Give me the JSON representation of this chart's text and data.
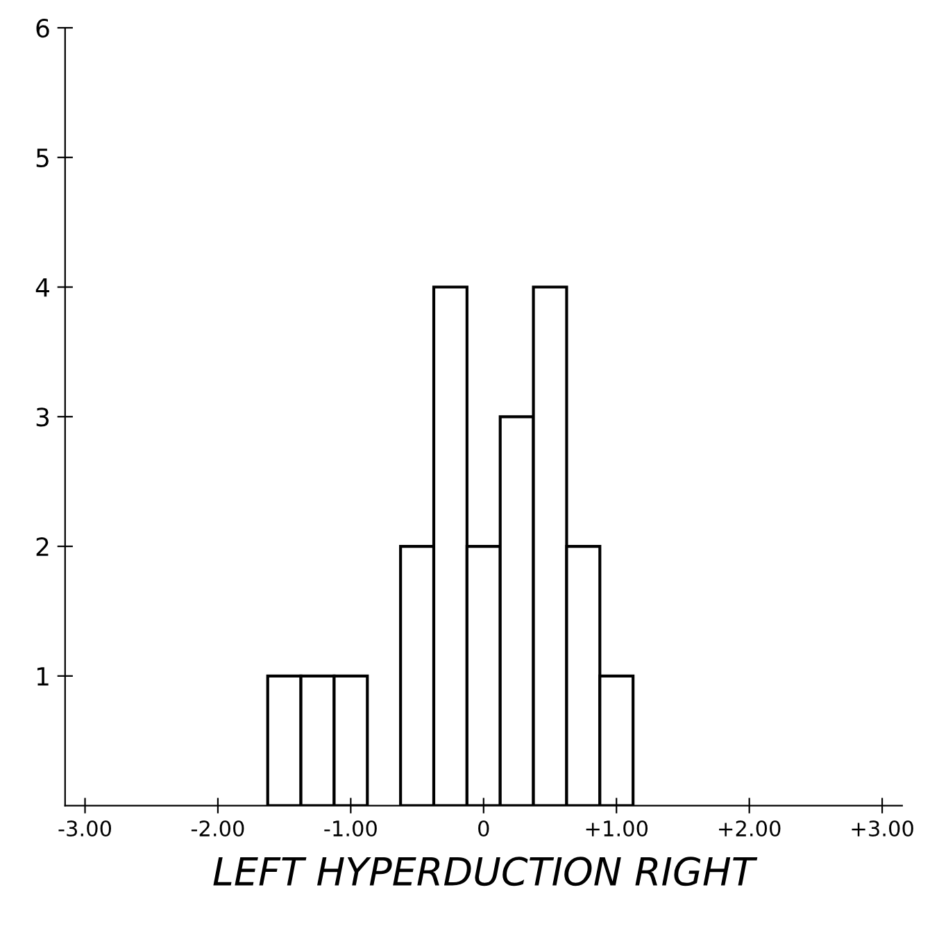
{
  "chart_data": {
    "type": "histogram",
    "xlabel": "LEFT HYPERDUCTION RIGHT",
    "bins": [
      -1.625,
      -1.375,
      -1.125,
      -0.875,
      -0.625,
      -0.375,
      -0.125,
      0.125,
      0.375,
      0.625,
      0.875,
      1.125
    ],
    "values": [
      1,
      1,
      1,
      0,
      2,
      4,
      2,
      3,
      4,
      2,
      1
    ],
    "color": "#ffffff",
    "xlim": [
      -3.15,
      3.15
    ],
    "ylim": [
      0,
      6
    ],
    "xticks": [
      {
        "value": -3,
        "label": "-3.00"
      },
      {
        "value": -2,
        "label": "-2.00"
      },
      {
        "value": -1,
        "label": "-1.00"
      },
      0,
      {
        "value": 1,
        "label": "+1.00"
      },
      {
        "value": 2,
        "label": "+2.00"
      },
      {
        "value": 3,
        "label": "+3.00"
      }
    ],
    "yticks": [
      1,
      2,
      3,
      4,
      5,
      6
    ],
    "grid": false
  }
}
